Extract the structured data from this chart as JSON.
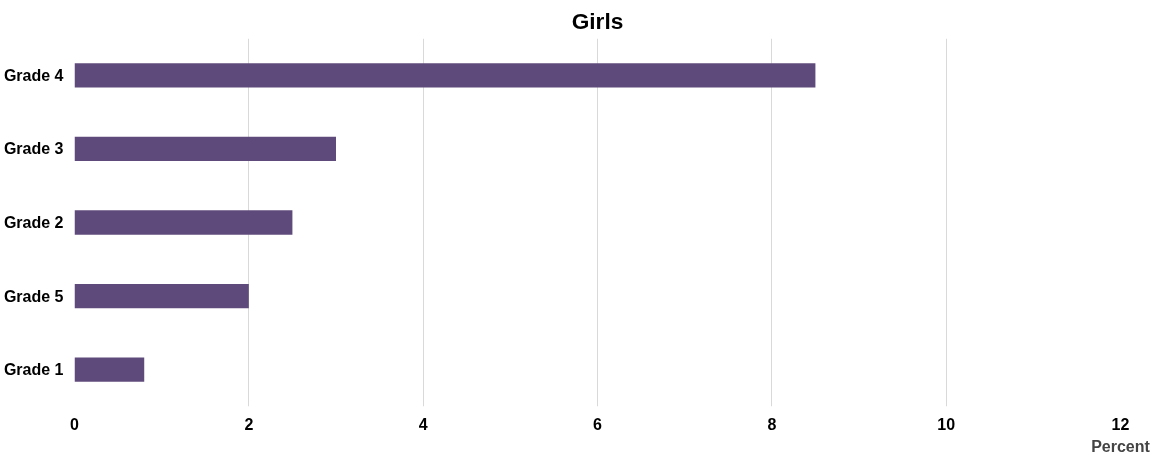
{
  "chart_data": {
    "type": "bar",
    "orientation": "horizontal",
    "title": "Girls",
    "xlabel": "Percent",
    "categories": [
      "Grade 4",
      "Grade 3",
      "Grade 2",
      "Grade 5",
      "Grade 1"
    ],
    "values": [
      8.5,
      3.0,
      2.5,
      2.0,
      0.8
    ],
    "color": "#5f4b7b",
    "xlim": [
      0,
      12
    ],
    "xticks": [
      0,
      2,
      4,
      6,
      8,
      10,
      12
    ],
    "grid": "x"
  }
}
